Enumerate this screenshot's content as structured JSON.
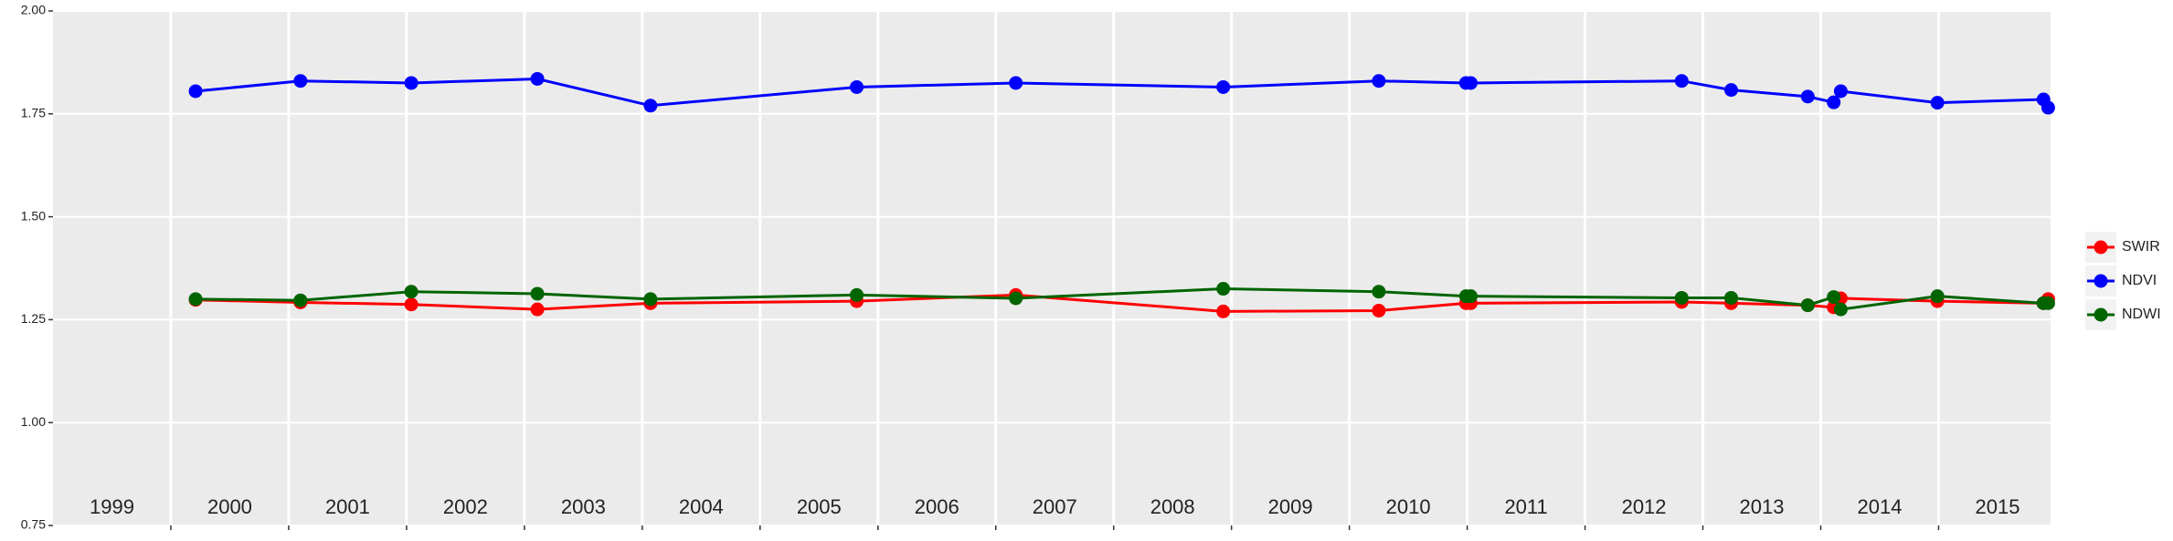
{
  "chart_data": {
    "type": "line",
    "x": [
      2000.21,
      2001.1,
      2002.04,
      2003.11,
      2004.07,
      2005.82,
      2007.17,
      2008.93,
      2010.25,
      2010.99,
      2011.03,
      2012.82,
      2013.24,
      2013.89,
      2014.11,
      2014.17,
      2014.99,
      2015.89,
      2015.93
    ],
    "series": [
      {
        "name": "SWIR",
        "color": "#ff0000",
        "values": [
          1.298,
          1.292,
          1.287,
          1.275,
          1.29,
          1.295,
          1.31,
          1.27,
          1.272,
          1.29,
          1.29,
          1.293,
          1.29,
          1.285,
          1.28,
          1.302,
          1.295,
          1.29,
          1.3
        ]
      },
      {
        "name": "NDVI",
        "color": "#0000ff",
        "values": [
          1.805,
          1.83,
          1.825,
          1.835,
          1.77,
          1.815,
          1.825,
          1.815,
          1.83,
          1.825,
          1.825,
          1.83,
          1.808,
          1.792,
          1.778,
          1.805,
          1.777,
          1.785,
          1.765
        ]
      },
      {
        "name": "NDWI",
        "color": "#006400",
        "values": [
          1.3,
          1.297,
          1.318,
          1.313,
          1.3,
          1.31,
          1.302,
          1.325,
          1.318,
          1.307,
          1.307,
          1.303,
          1.303,
          1.285,
          1.305,
          1.275,
          1.307,
          1.29,
          1.29
        ]
      }
    ],
    "xlim": [
      1999,
      2015.95
    ],
    "xgrid": [
      2000,
      2001,
      2002,
      2003,
      2004,
      2005,
      2006,
      2007,
      2008,
      2009,
      2010,
      2011,
      2012,
      2013,
      2014,
      2015
    ],
    "xticks": [
      {
        "value": 1999.5,
        "label": "1999"
      },
      {
        "value": 2000.5,
        "label": "2000"
      },
      {
        "value": 2001.5,
        "label": "2001"
      },
      {
        "value": 2002.5,
        "label": "2002"
      },
      {
        "value": 2003.5,
        "label": "2003"
      },
      {
        "value": 2004.5,
        "label": "2004"
      },
      {
        "value": 2005.5,
        "label": "2005"
      },
      {
        "value": 2006.5,
        "label": "2006"
      },
      {
        "value": 2007.5,
        "label": "2007"
      },
      {
        "value": 2008.5,
        "label": "2008"
      },
      {
        "value": 2009.5,
        "label": "2009"
      },
      {
        "value": 2010.5,
        "label": "2010"
      },
      {
        "value": 2011.5,
        "label": "2011"
      },
      {
        "value": 2012.5,
        "label": "2012"
      },
      {
        "value": 2013.5,
        "label": "2013"
      },
      {
        "value": 2014.5,
        "label": "2014"
      },
      {
        "value": 2015.5,
        "label": "2015"
      }
    ],
    "ylim": [
      0.75,
      2.0
    ],
    "yticks": [
      {
        "value": 0.75,
        "label": "0.75"
      },
      {
        "value": 1.0,
        "label": "1.00"
      },
      {
        "value": 1.25,
        "label": "1.25"
      },
      {
        "value": 1.5,
        "label": "1.50"
      },
      {
        "value": 1.75,
        "label": "1.75"
      },
      {
        "value": 2.0,
        "label": "2.00"
      }
    ],
    "grid": true,
    "legend": "right"
  }
}
